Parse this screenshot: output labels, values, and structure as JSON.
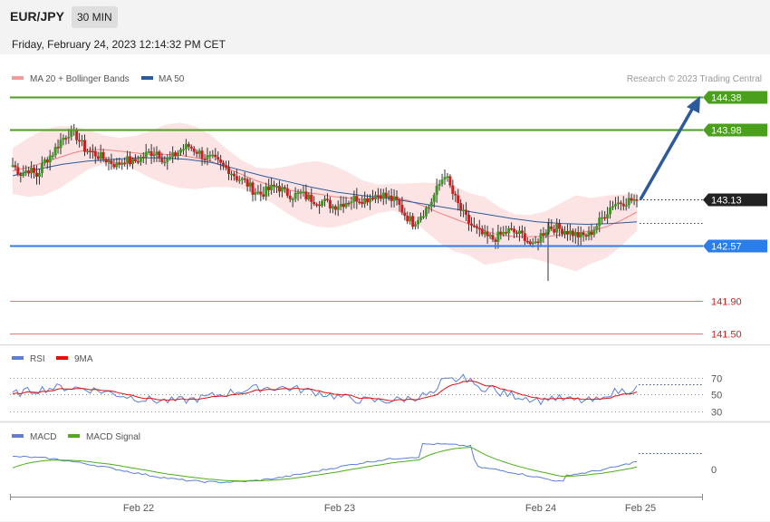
{
  "header": {
    "pair": "EUR/JPY",
    "timeframe": "30 MIN",
    "datetime": "Friday, February 24, 2023 12:14:32 PM CET"
  },
  "legend": {
    "ma20": "MA 20 + Bollinger Bands",
    "ma50": "MA 50",
    "credit": "Research © 2023 Trading Central",
    "ma20_color": "#f08080",
    "ma50_color": "#2c5a9c"
  },
  "rsi_legend": {
    "rsi": "RSI",
    "ma9": "9MA",
    "rsi_color": "#5b7fd6",
    "ma9_color": "#e01010"
  },
  "macd_legend": {
    "macd": "MACD",
    "signal": "MACD Signal",
    "macd_color": "#5b7fd6",
    "signal_color": "#4caf1a"
  },
  "chart_data": {
    "type": "candlestick",
    "instrument": "EUR/JPY",
    "timeframe": "30 MIN",
    "x_ticks": [
      "Feb 22",
      "Feb 23",
      "Feb 24",
      "Feb 25"
    ],
    "ylim": [
      141.4,
      144.5
    ],
    "levels": [
      {
        "label": "144.38",
        "value": 144.38,
        "color": "#4aa01c"
      },
      {
        "label": "143.98",
        "value": 143.98,
        "color": "#4aa01c"
      },
      {
        "label": "143.13",
        "value": 143.13,
        "color": "#222222"
      },
      {
        "label": "142.57",
        "value": 142.57,
        "color": "#2b7de9"
      },
      {
        "label": "141.90",
        "value": 141.9,
        "color": "#cc2222"
      },
      {
        "label": "141.50",
        "value": 141.5,
        "color": "#cc2222"
      }
    ],
    "close_series": [
      143.55,
      143.45,
      143.5,
      143.42,
      143.6,
      143.7,
      143.85,
      143.95,
      143.9,
      143.75,
      143.7,
      143.65,
      143.6,
      143.55,
      143.62,
      143.58,
      143.64,
      143.7,
      143.72,
      143.6,
      143.65,
      143.74,
      143.78,
      143.72,
      143.65,
      143.62,
      143.55,
      143.5,
      143.4,
      143.35,
      143.25,
      143.2,
      143.25,
      143.3,
      143.22,
      143.18,
      143.2,
      143.15,
      143.12,
      143.1,
      143.05,
      143.08,
      143.12,
      143.15,
      143.13,
      143.18,
      143.2,
      143.15,
      143.1,
      142.95,
      142.85,
      142.95,
      143.05,
      143.25,
      143.45,
      143.2,
      143.0,
      142.85,
      142.75,
      142.68,
      142.65,
      142.7,
      142.75,
      142.72,
      142.68,
      142.55,
      142.7,
      142.8,
      142.78,
      142.76,
      142.72,
      142.68,
      142.7,
      142.82,
      142.95,
      143.08,
      143.1,
      143.12,
      143.13
    ],
    "ma20_series": [
      143.48,
      143.52,
      143.58,
      143.64,
      143.7,
      143.74,
      143.74,
      143.72,
      143.7,
      143.68,
      143.68,
      143.67,
      143.64,
      143.6,
      143.52,
      143.44,
      143.36,
      143.3,
      143.25,
      143.22,
      143.2,
      143.17,
      143.15,
      143.13,
      143.14,
      143.16,
      143.12,
      143.05,
      142.97,
      142.9,
      142.83,
      142.75,
      142.7,
      142.68,
      142.68,
      142.68,
      142.7,
      142.72,
      142.75,
      142.8,
      142.88,
      142.98
    ],
    "ma50_series": [
      143.42,
      143.5,
      143.56,
      143.6,
      143.62,
      143.64,
      143.64,
      143.62,
      143.58,
      143.5,
      143.42,
      143.35,
      143.28,
      143.22,
      143.18,
      143.15,
      143.1,
      143.05,
      143.0,
      142.95,
      142.9,
      142.86,
      142.84,
      142.83,
      142.84,
      142.86
    ],
    "rsi": {
      "levels": [
        "70",
        "50",
        "30"
      ],
      "last": 56
    },
    "macd": {
      "zero_label": "0"
    },
    "annotation": "projected path to 144.38"
  }
}
